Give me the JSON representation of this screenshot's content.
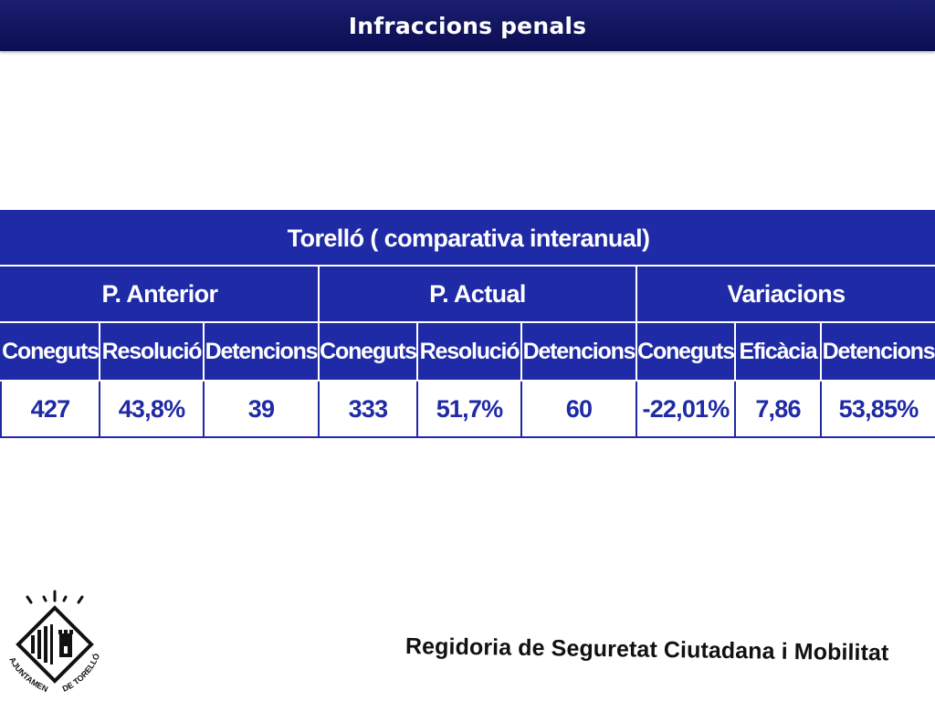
{
  "slide": {
    "title": "Infraccions penals"
  },
  "table": {
    "title": "Torelló ( comparativa interanual)",
    "groups": [
      "P. Anterior",
      "P. Actual",
      "Variacions"
    ],
    "columns": [
      "Coneguts",
      "Resolució",
      "Detencions",
      "Coneguts",
      "Resolució",
      "Detencions",
      "Coneguts",
      "Eficàcia",
      "Detencions"
    ],
    "values": [
      "427",
      "43,8%",
      "39",
      "333",
      "51,7%",
      "60",
      "-22,01%",
      "7,86",
      "53,85%"
    ]
  },
  "logo": {
    "text_left": "AJUNTAMENT",
    "text_right": "DE TORELLÓ"
  },
  "footer": {
    "text": "Regidoria de Seguretat Ciutadana i Mobilitat"
  },
  "colors": {
    "title_bar": "#0b0e52",
    "table_blue": "#1f2aa6"
  }
}
